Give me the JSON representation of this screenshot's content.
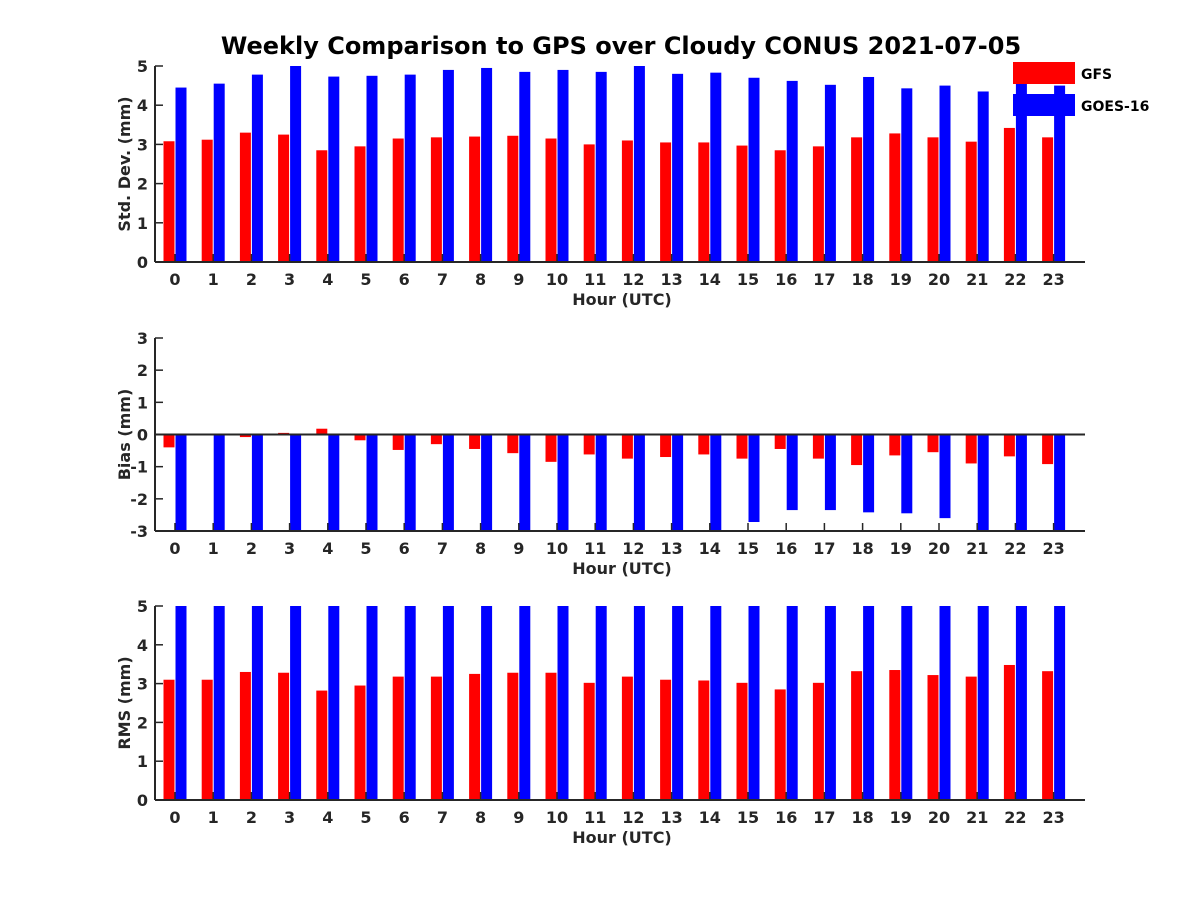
{
  "figure": {
    "title": "Weekly Comparison to GPS over Cloudy CONUS 2021-07-05"
  },
  "legend": {
    "placement": "top-right",
    "entries": [
      {
        "name": "GFS",
        "color": "#ff0000"
      },
      {
        "name": "GOES-16",
        "color": "#0000ff"
      }
    ]
  },
  "chart_data": [
    {
      "type": "bar",
      "xlabel": "Hour (UTC)",
      "ylabel": "Std. Dev. (mm)",
      "ylim": [
        0,
        5
      ],
      "yticks": [
        0,
        1,
        2,
        3,
        4,
        5
      ],
      "categories": [
        "0",
        "1",
        "2",
        "3",
        "4",
        "5",
        "6",
        "7",
        "8",
        "9",
        "10",
        "11",
        "12",
        "13",
        "14",
        "15",
        "16",
        "17",
        "18",
        "19",
        "20",
        "21",
        "22",
        "23"
      ],
      "series": [
        {
          "name": "GFS",
          "color": "#ff0000",
          "values": [
            3.08,
            3.12,
            3.3,
            3.25,
            2.85,
            2.95,
            3.15,
            3.18,
            3.2,
            3.22,
            3.15,
            3.0,
            3.1,
            3.05,
            3.05,
            2.97,
            2.85,
            2.95,
            3.18,
            3.28,
            3.18,
            3.07,
            3.42,
            3.18
          ]
        },
        {
          "name": "GOES-16",
          "color": "#0000ff",
          "values": [
            4.45,
            4.55,
            4.78,
            5.0,
            4.73,
            4.75,
            4.78,
            4.9,
            4.95,
            4.85,
            4.9,
            4.85,
            5.0,
            4.8,
            4.83,
            4.7,
            4.62,
            4.52,
            4.72,
            4.43,
            4.5,
            4.35,
            4.55,
            4.5
          ]
        }
      ]
    },
    {
      "type": "bar",
      "xlabel": "Hour (UTC)",
      "ylabel": "Bias (mm)",
      "ylim": [
        -3,
        3
      ],
      "yticks": [
        -3,
        -2,
        -1,
        0,
        1,
        2,
        3
      ],
      "zero_line": true,
      "categories": [
        "0",
        "1",
        "2",
        "3",
        "4",
        "5",
        "6",
        "7",
        "8",
        "9",
        "10",
        "11",
        "12",
        "13",
        "14",
        "15",
        "16",
        "17",
        "18",
        "19",
        "20",
        "21",
        "22",
        "23"
      ],
      "series": [
        {
          "name": "GFS",
          "color": "#ff0000",
          "values": [
            -0.4,
            -0.02,
            -0.08,
            0.05,
            0.18,
            -0.18,
            -0.48,
            -0.3,
            -0.45,
            -0.58,
            -0.85,
            -0.62,
            -0.75,
            -0.7,
            -0.62,
            -0.75,
            -0.45,
            -0.75,
            -0.95,
            -0.65,
            -0.55,
            -0.9,
            -0.68,
            -0.92
          ]
        },
        {
          "name": "GOES-16",
          "color": "#0000ff",
          "values": [
            -3.0,
            -3.0,
            -3.0,
            -3.0,
            -3.0,
            -3.0,
            -3.0,
            -3.0,
            -3.0,
            -3.0,
            -3.0,
            -3.0,
            -3.0,
            -3.0,
            -3.0,
            -2.72,
            -2.35,
            -2.35,
            -2.42,
            -2.45,
            -2.6,
            -3.0,
            -3.0,
            -3.0
          ]
        }
      ]
    },
    {
      "type": "bar",
      "xlabel": "Hour (UTC)",
      "ylabel": "RMS (mm)",
      "ylim": [
        0,
        5
      ],
      "yticks": [
        0,
        1,
        2,
        3,
        4,
        5
      ],
      "categories": [
        "0",
        "1",
        "2",
        "3",
        "4",
        "5",
        "6",
        "7",
        "8",
        "9",
        "10",
        "11",
        "12",
        "13",
        "14",
        "15",
        "16",
        "17",
        "18",
        "19",
        "20",
        "21",
        "22",
        "23"
      ],
      "series": [
        {
          "name": "GFS",
          "color": "#ff0000",
          "values": [
            3.1,
            3.1,
            3.3,
            3.28,
            2.82,
            2.95,
            3.18,
            3.18,
            3.25,
            3.28,
            3.28,
            3.02,
            3.18,
            3.1,
            3.08,
            3.02,
            2.85,
            3.02,
            3.32,
            3.35,
            3.22,
            3.18,
            3.48,
            3.32
          ]
        },
        {
          "name": "GOES-16",
          "color": "#0000ff",
          "values": [
            5.0,
            5.0,
            5.0,
            5.0,
            5.0,
            5.0,
            5.0,
            5.0,
            5.0,
            5.0,
            5.0,
            5.0,
            5.0,
            5.0,
            5.0,
            5.0,
            5.0,
            5.0,
            5.0,
            5.0,
            5.0,
            5.0,
            5.0,
            5.0
          ]
        }
      ]
    }
  ]
}
